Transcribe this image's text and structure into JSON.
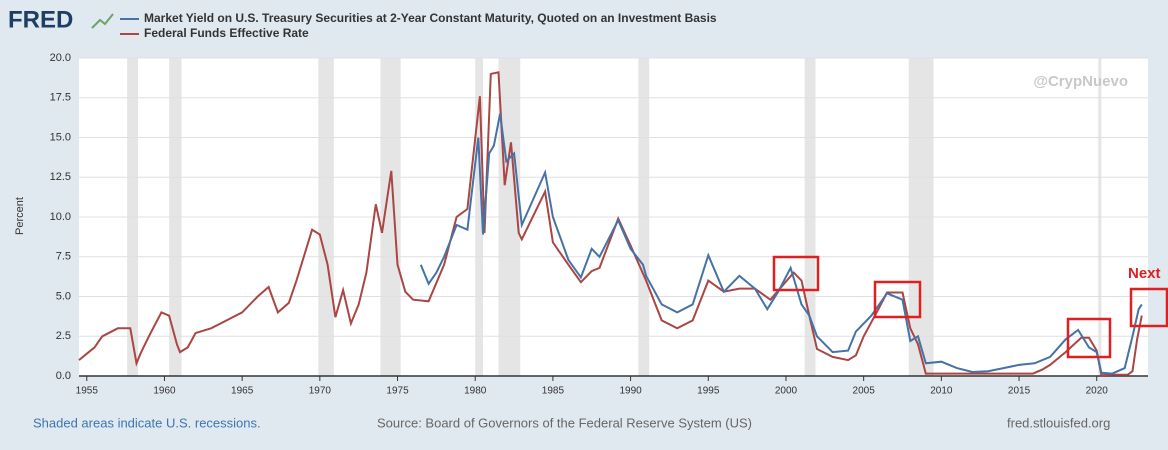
{
  "chart_data": {
    "type": "line",
    "logo": "FRED",
    "ylabel": "Percent",
    "watermark": "@CrypNuevo",
    "annotation": "Next",
    "footer": {
      "left": "Shaded areas indicate U.S. recessions.",
      "center": "Source: Board of Governors of the Federal Reserve System (US)",
      "right": "fred.stlouisfed.org"
    },
    "xlim": [
      1954.5,
      2023.3
    ],
    "xticks": [
      1955,
      1960,
      1965,
      1970,
      1975,
      1980,
      1985,
      1990,
      1995,
      2000,
      2005,
      2010,
      2015,
      2020
    ],
    "ylim": [
      0,
      20
    ],
    "yticks": [
      {
        "value": 0,
        "label": "0.0"
      },
      {
        "value": 2.5,
        "label": "2.5"
      },
      {
        "value": 5,
        "label": "5.0"
      },
      {
        "value": 7.5,
        "label": "7.5"
      },
      {
        "value": 10,
        "label": "10.0"
      },
      {
        "value": 12.5,
        "label": "12.5"
      },
      {
        "value": 15,
        "label": "15.0"
      },
      {
        "value": 17.5,
        "label": "17.5"
      },
      {
        "value": 20,
        "label": "20.0"
      }
    ],
    "grid": true,
    "recessions": [
      [
        1957.6,
        1958.3
      ],
      [
        1960.3,
        1961.1
      ],
      [
        1969.9,
        1970.9
      ],
      [
        1973.9,
        1975.2
      ],
      [
        1980.0,
        1980.5
      ],
      [
        1981.5,
        1982.9
      ],
      [
        1990.5,
        1991.2
      ],
      [
        2001.2,
        2001.9
      ],
      [
        2007.9,
        2009.5
      ],
      [
        2020.1,
        2020.3
      ]
    ],
    "series": [
      {
        "name": "Market Yield on U.S. Treasury Securities at 2-Year Constant Maturity, Quoted on an Investment Basis",
        "color": "#4572a7",
        "x": [
          1976.5,
          1977,
          1977.5,
          1978,
          1978.8,
          1979.5,
          1980.2,
          1980.5,
          1980.9,
          1981.2,
          1981.6,
          1982,
          1982.5,
          1983,
          1984.5,
          1985,
          1986,
          1986.8,
          1987.5,
          1988,
          1989.2,
          1990,
          1990.8,
          1991,
          1992,
          1993,
          1994,
          1995,
          1996,
          1997,
          1998,
          1998.8,
          1999.5,
          2000.3,
          2001,
          2001.5,
          2002,
          2002.5,
          2003,
          2004,
          2004.5,
          2005.5,
          2006.5,
          2007.5,
          2008,
          2008.5,
          2009,
          2010,
          2011,
          2012,
          2013,
          2014,
          2015,
          2016,
          2017,
          2018,
          2018.8,
          2019.5,
          2020,
          2020.3,
          2021,
          2021.8,
          2022.3,
          2022.7,
          2022.9
        ],
        "values": [
          7.0,
          5.8,
          6.5,
          7.5,
          9.5,
          9.2,
          15.0,
          8.9,
          14.0,
          14.5,
          16.5,
          13.5,
          14.0,
          9.5,
          12.8,
          10.0,
          7.3,
          6.2,
          8.0,
          7.5,
          9.8,
          8.0,
          7.0,
          6.3,
          4.5,
          4.0,
          4.5,
          7.6,
          5.3,
          6.3,
          5.5,
          4.2,
          5.3,
          6.8,
          4.5,
          3.8,
          2.5,
          2.0,
          1.5,
          1.6,
          2.8,
          3.8,
          5.2,
          4.8,
          2.2,
          2.5,
          0.8,
          0.9,
          0.5,
          0.25,
          0.3,
          0.5,
          0.7,
          0.8,
          1.2,
          2.3,
          2.9,
          1.8,
          1.5,
          0.2,
          0.15,
          0.5,
          2.5,
          4.2,
          4.5
        ]
      },
      {
        "name": "Federal Funds Effective Rate",
        "color": "#aa4643",
        "x": [
          1954.5,
          1955,
          1955.5,
          1956,
          1957,
          1957.8,
          1958.2,
          1958.5,
          1959,
          1959.8,
          1960.3,
          1960.8,
          1961,
          1961.5,
          1962,
          1963,
          1964,
          1965,
          1966,
          1966.7,
          1967.3,
          1968,
          1968.5,
          1969.5,
          1970,
          1970.5,
          1971,
          1971.5,
          1972,
          1972.5,
          1973,
          1973.6,
          1974,
          1974.6,
          1975,
          1975.5,
          1976,
          1977,
          1978,
          1978.8,
          1979.5,
          1980.3,
          1980.6,
          1981,
          1981.5,
          1981.9,
          1982.3,
          1982.8,
          1983,
          1984.5,
          1985,
          1986,
          1986.8,
          1987.5,
          1988,
          1989.2,
          1990,
          1991,
          1992,
          1993,
          1994,
          1995,
          1996,
          1997,
          1998,
          1999,
          2000.5,
          2001,
          2001.5,
          2002,
          2003,
          2004,
          2004.5,
          2005,
          2006,
          2006.5,
          2007.5,
          2008,
          2008.5,
          2009,
          2010,
          2015.9,
          2016.5,
          2017,
          2018,
          2019,
          2019.5,
          2020,
          2020.3,
          2021,
          2022,
          2022.3,
          2022.6,
          2022.9
        ],
        "values": [
          1.0,
          1.4,
          1.8,
          2.5,
          3.0,
          3.0,
          0.8,
          1.5,
          2.5,
          4.0,
          3.8,
          2.0,
          1.5,
          1.8,
          2.7,
          3.0,
          3.5,
          4.0,
          5.0,
          5.6,
          4.0,
          4.6,
          6.0,
          9.2,
          8.9,
          7.0,
          3.7,
          5.4,
          3.3,
          4.5,
          6.5,
          10.8,
          9.0,
          12.9,
          7.0,
          5.3,
          4.8,
          4.7,
          7.0,
          10.0,
          10.5,
          17.6,
          9.0,
          19.0,
          19.1,
          12.0,
          14.7,
          9.0,
          8.6,
          11.6,
          8.4,
          7.0,
          5.9,
          6.6,
          6.8,
          9.9,
          8.2,
          6.0,
          3.5,
          3.0,
          3.5,
          6.0,
          5.3,
          5.5,
          5.5,
          4.8,
          6.5,
          6.0,
          3.8,
          1.7,
          1.2,
          1.0,
          1.3,
          2.5,
          4.3,
          5.25,
          5.25,
          3.0,
          2.0,
          0.15,
          0.15,
          0.15,
          0.4,
          0.7,
          1.5,
          2.4,
          2.4,
          1.6,
          0.05,
          0.08,
          0.08,
          0.3,
          2.3,
          3.8
        ]
      }
    ]
  }
}
